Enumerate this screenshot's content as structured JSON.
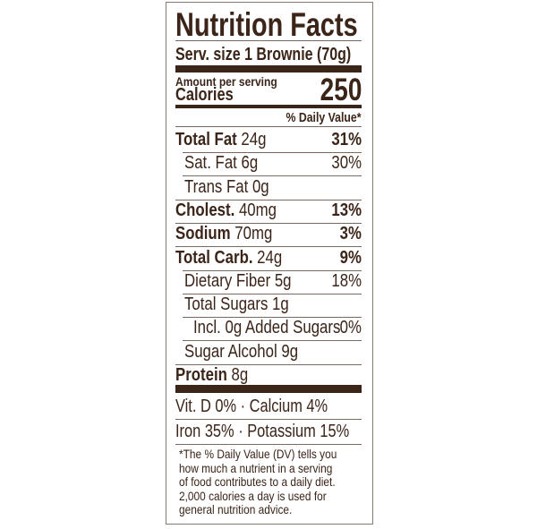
{
  "title": "Nutrition Facts",
  "serving_size": "Serv. size 1 Brownie (70g)",
  "amount_per_serving": "Amount per serving",
  "calories_label": "Calories",
  "calories_value": "250",
  "daily_value_header": "% Daily Value*",
  "nutrients": [
    {
      "name": "Total Fat",
      "amount": "24g",
      "dv": "31%"
    },
    {
      "name": "Sat. Fat",
      "amount": "6g",
      "dv": "30%"
    },
    {
      "name": "Trans Fat",
      "amount": "0g",
      "dv": ""
    },
    {
      "name": "Cholest.",
      "amount": "40mg",
      "dv": "13%"
    },
    {
      "name": "Sodium",
      "amount": "70mg",
      "dv": "3%"
    },
    {
      "name": "Total Carb.",
      "amount": "24g",
      "dv": "9%"
    },
    {
      "name": "Dietary Fiber",
      "amount": "5g",
      "dv": "18%"
    },
    {
      "name": "Total Sugars",
      "amount": "1g",
      "dv": ""
    },
    {
      "name": "Incl. 0g Added Sugars",
      "amount": "",
      "dv": "0%"
    },
    {
      "name": "Sugar Alcohol",
      "amount": "9g",
      "dv": ""
    },
    {
      "name": "Protein",
      "amount": "8g",
      "dv": ""
    }
  ],
  "vitamins_line1": "Vit. D  0% · Calcium  4%",
  "vitamins_line2": "Iron  35% · Potassium 15%",
  "footnote": [
    "*The % Daily Value (DV) tells you",
    "how much a nutrient in a serving",
    "of food contributes to a daily diet.",
    "2,000 calories a day is used for",
    "general nutrition advice."
  ]
}
